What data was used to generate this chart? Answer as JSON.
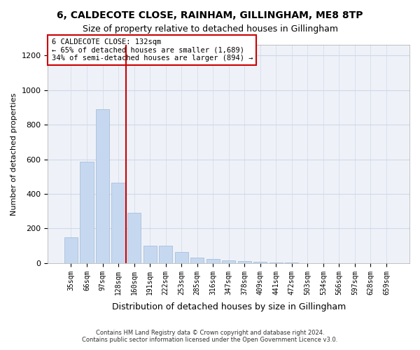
{
  "title1": "6, CALDECOTE CLOSE, RAINHAM, GILLINGHAM, ME8 8TP",
  "title2": "Size of property relative to detached houses in Gillingham",
  "xlabel": "Distribution of detached houses by size in Gillingham",
  "ylabel": "Number of detached properties",
  "annotation_title": "6 CALDECOTE CLOSE: 132sqm",
  "annotation_line1": "← 65% of detached houses are smaller (1,689)",
  "annotation_line2": "34% of semi-detached houses are larger (894) →",
  "property_size": 132,
  "categories": [
    "35sqm",
    "66sqm",
    "97sqm",
    "128sqm",
    "160sqm",
    "191sqm",
    "222sqm",
    "253sqm",
    "285sqm",
    "316sqm",
    "347sqm",
    "378sqm",
    "409sqm",
    "441sqm",
    "472sqm",
    "503sqm",
    "534sqm",
    "566sqm",
    "597sqm",
    "628sqm",
    "659sqm"
  ],
  "values": [
    150,
    585,
    890,
    465,
    290,
    100,
    100,
    65,
    30,
    25,
    15,
    10,
    8,
    3,
    2,
    1,
    1,
    0,
    0,
    0,
    0
  ],
  "bar_color": "#c5d8f0",
  "bar_edge_color": "#a0b8d8",
  "vline_color": "#cc0000",
  "vline_position": 3.5,
  "annotation_box_color": "#ffffff",
  "annotation_box_edge": "#cc0000",
  "grid_color": "#d0d8e8",
  "bg_color": "#eef2f8",
  "footer1": "Contains HM Land Registry data © Crown copyright and database right 2024.",
  "footer2": "Contains public sector information licensed under the Open Government Licence v3.0.",
  "ylim": [
    0,
    1260
  ],
  "yticks": [
    0,
    200,
    400,
    600,
    800,
    1000,
    1200
  ]
}
